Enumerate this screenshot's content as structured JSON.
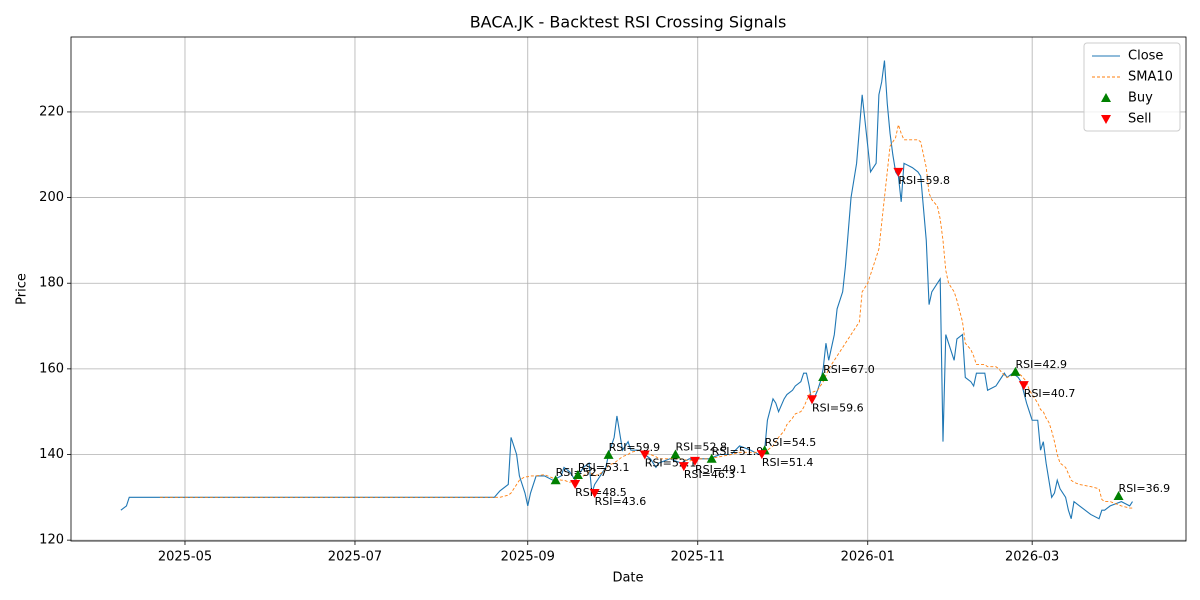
{
  "chart_data": {
    "type": "line",
    "title": "BACA.JK - Backtest RSI Crossing Signals",
    "x_label": "Date",
    "y_label": "Price",
    "x": [
      20186,
      20188,
      20189,
      20200,
      20320,
      20322,
      20325,
      20326,
      20328,
      20329,
      20331,
      20332,
      20333,
      20335,
      20338,
      20341,
      20344,
      20345,
      20347,
      20349,
      20351,
      20352,
      20354,
      20355,
      20356,
      20358,
      20360,
      20361,
      20363,
      20364,
      20365,
      20366,
      20368,
      20369,
      20372,
      20376,
      20378,
      20379,
      20383,
      20387,
      20390,
      20394,
      20397,
      20401,
      20405,
      20408,
      20412,
      20415,
      20417,
      20418,
      20420,
      20421,
      20422,
      20424,
      20425,
      20427,
      20428,
      20430,
      20431,
      20432,
      20433,
      20434,
      20436,
      20437,
      20438,
      20439,
      20440,
      20442,
      20443,
      20445,
      20446,
      20447,
      20448,
      20450,
      20451,
      20452,
      20453,
      20454,
      20455,
      20456,
      20457,
      20458,
      20459,
      20460,
      20461,
      20462,
      20463,
      20464,
      20465,
      20466,
      20467,
      20470,
      20472,
      20473,
      20475,
      20476,
      20477,
      20479,
      20480,
      20481,
      20482,
      20483,
      20485,
      20486,
      20488,
      20489,
      20491,
      20492,
      20493,
      20496,
      20497,
      20500,
      20501,
      20503,
      20504,
      20506,
      20508,
      20509,
      20511,
      20512,
      20513,
      20515,
      20516,
      20517,
      20518,
      20519,
      20520,
      20521,
      20522,
      20523,
      20525,
      20526,
      20527,
      20528,
      20530,
      20534,
      20537,
      20538,
      20539,
      20541,
      20545,
      20548,
      20549
    ],
    "series": [
      {
        "name": "Close",
        "kind": "line",
        "style": "solid",
        "color": "#1f77b4",
        "values": [
          127,
          128,
          130,
          130,
          130,
          131.5,
          133,
          144,
          140,
          135,
          131,
          128,
          131,
          135,
          135,
          134,
          135,
          137,
          136,
          134,
          136,
          137,
          138,
          131,
          133,
          135,
          137,
          140,
          144,
          149,
          145,
          141,
          143,
          141,
          141,
          139,
          137,
          138,
          139,
          138,
          139,
          139,
          139,
          140,
          140,
          142,
          141,
          140,
          141,
          148,
          153,
          152,
          150,
          153,
          154,
          155,
          156,
          157,
          159,
          159,
          156,
          152,
          155,
          157,
          160,
          166,
          162,
          168,
          174,
          178,
          184,
          192,
          200,
          208,
          216,
          224,
          218,
          212,
          206,
          207,
          208,
          224,
          227,
          232,
          222,
          215,
          210,
          206,
          205,
          199,
          208,
          207,
          206,
          205,
          190,
          175,
          178,
          180,
          181,
          143,
          168,
          166,
          162,
          167,
          168,
          158,
          157,
          156,
          159,
          159,
          155,
          156,
          157,
          159,
          158,
          159,
          158,
          157,
          152,
          150,
          148,
          148,
          141,
          143,
          138,
          134,
          130,
          131,
          134,
          132,
          130,
          127,
          125,
          129,
          128,
          126,
          125,
          127,
          127,
          128,
          129,
          128,
          129
        ]
      },
      {
        "name": "SMA10",
        "kind": "line",
        "style": "dashed",
        "color": "#ff7f0e",
        "values": [
          null,
          null,
          null,
          130,
          130,
          130,
          130.5,
          131,
          133,
          134,
          134.8,
          134.8,
          135,
          135,
          135.3,
          134.5,
          134,
          134,
          133.5,
          134,
          134.5,
          135,
          136,
          135.5,
          135,
          135.5,
          136.5,
          137.5,
          138,
          138.5,
          139,
          139.5,
          140,
          140.5,
          141,
          140,
          139.5,
          139,
          139,
          139,
          138.5,
          139,
          139,
          139.5,
          140,
          140.5,
          140.5,
          140.5,
          140.5,
          141,
          142,
          143,
          144,
          145.5,
          147,
          148.5,
          149.5,
          150,
          151,
          152.5,
          154,
          154.5,
          155,
          156,
          157,
          158.5,
          160,
          162,
          163,
          165,
          166,
          167,
          168,
          170,
          171,
          178,
          179,
          180,
          182,
          184,
          186,
          188,
          194,
          200,
          206,
          212,
          213,
          214,
          217,
          215,
          213.5,
          213.5,
          213.5,
          213,
          207,
          201,
          199.5,
          198,
          195,
          190,
          183,
          180,
          178,
          176,
          171,
          166,
          164.5,
          163,
          161,
          161,
          160.5,
          160.5,
          160,
          158.5,
          158,
          158.5,
          159,
          158.5,
          157,
          155,
          154,
          152,
          150.5,
          150,
          148.5,
          147.5,
          145.5,
          143,
          140,
          138,
          137,
          135.5,
          134,
          133.5,
          133,
          132.5,
          132,
          129.5,
          129,
          129,
          128,
          127.5,
          127.5
        ]
      },
      {
        "name": "Buy",
        "kind": "scatter",
        "marker": "up",
        "color": "#008000",
        "x": [
          20342,
          20350,
          20361,
          20385,
          20398,
          20417,
          20438,
          20507,
          20544
        ],
        "values": [
          134,
          135.2,
          139.9,
          140,
          139,
          141,
          158.1,
          159.3,
          130.3
        ],
        "annotations": [
          "RSI=52.7",
          "RSI=53.1",
          "RSI=59.9",
          "RSI=52.8",
          "RSI=51.9",
          "RSI=54.5",
          "RSI=67.0",
          "RSI=42.9",
          "RSI=36.9"
        ]
      },
      {
        "name": "Sell",
        "kind": "scatter",
        "marker": "down",
        "color": "#ff0000",
        "x": [
          20349,
          20356,
          20374,
          20388,
          20392,
          20416,
          20434,
          20465,
          20510
        ],
        "values": [
          133.1,
          131,
          140,
          137.3,
          138.5,
          140.1,
          152.9,
          206,
          156.2
        ],
        "annotations": [
          "RSI=48.5",
          "RSI=43.6",
          "RSI=52.1",
          "RSI=46.3",
          "RSI=49.1",
          "RSI=51.4",
          "RSI=59.6",
          "RSI=59.8",
          "RSI=40.7"
        ]
      }
    ],
    "xlim": [
      20168.1,
      20568.2
    ],
    "xticks": [
      {
        "value": 20209,
        "label": "2025-05"
      },
      {
        "value": 20270,
        "label": "2025-07"
      },
      {
        "value": 20332,
        "label": "2025-09"
      },
      {
        "value": 20393,
        "label": "2025-11"
      },
      {
        "value": 20454,
        "label": "2026-01"
      },
      {
        "value": 20513,
        "label": "2026-03"
      }
    ],
    "ylim": [
      119.8,
      237.5
    ],
    "yticks": [
      120,
      140,
      160,
      180,
      200,
      220
    ],
    "grid": true,
    "legend": "upper right"
  }
}
